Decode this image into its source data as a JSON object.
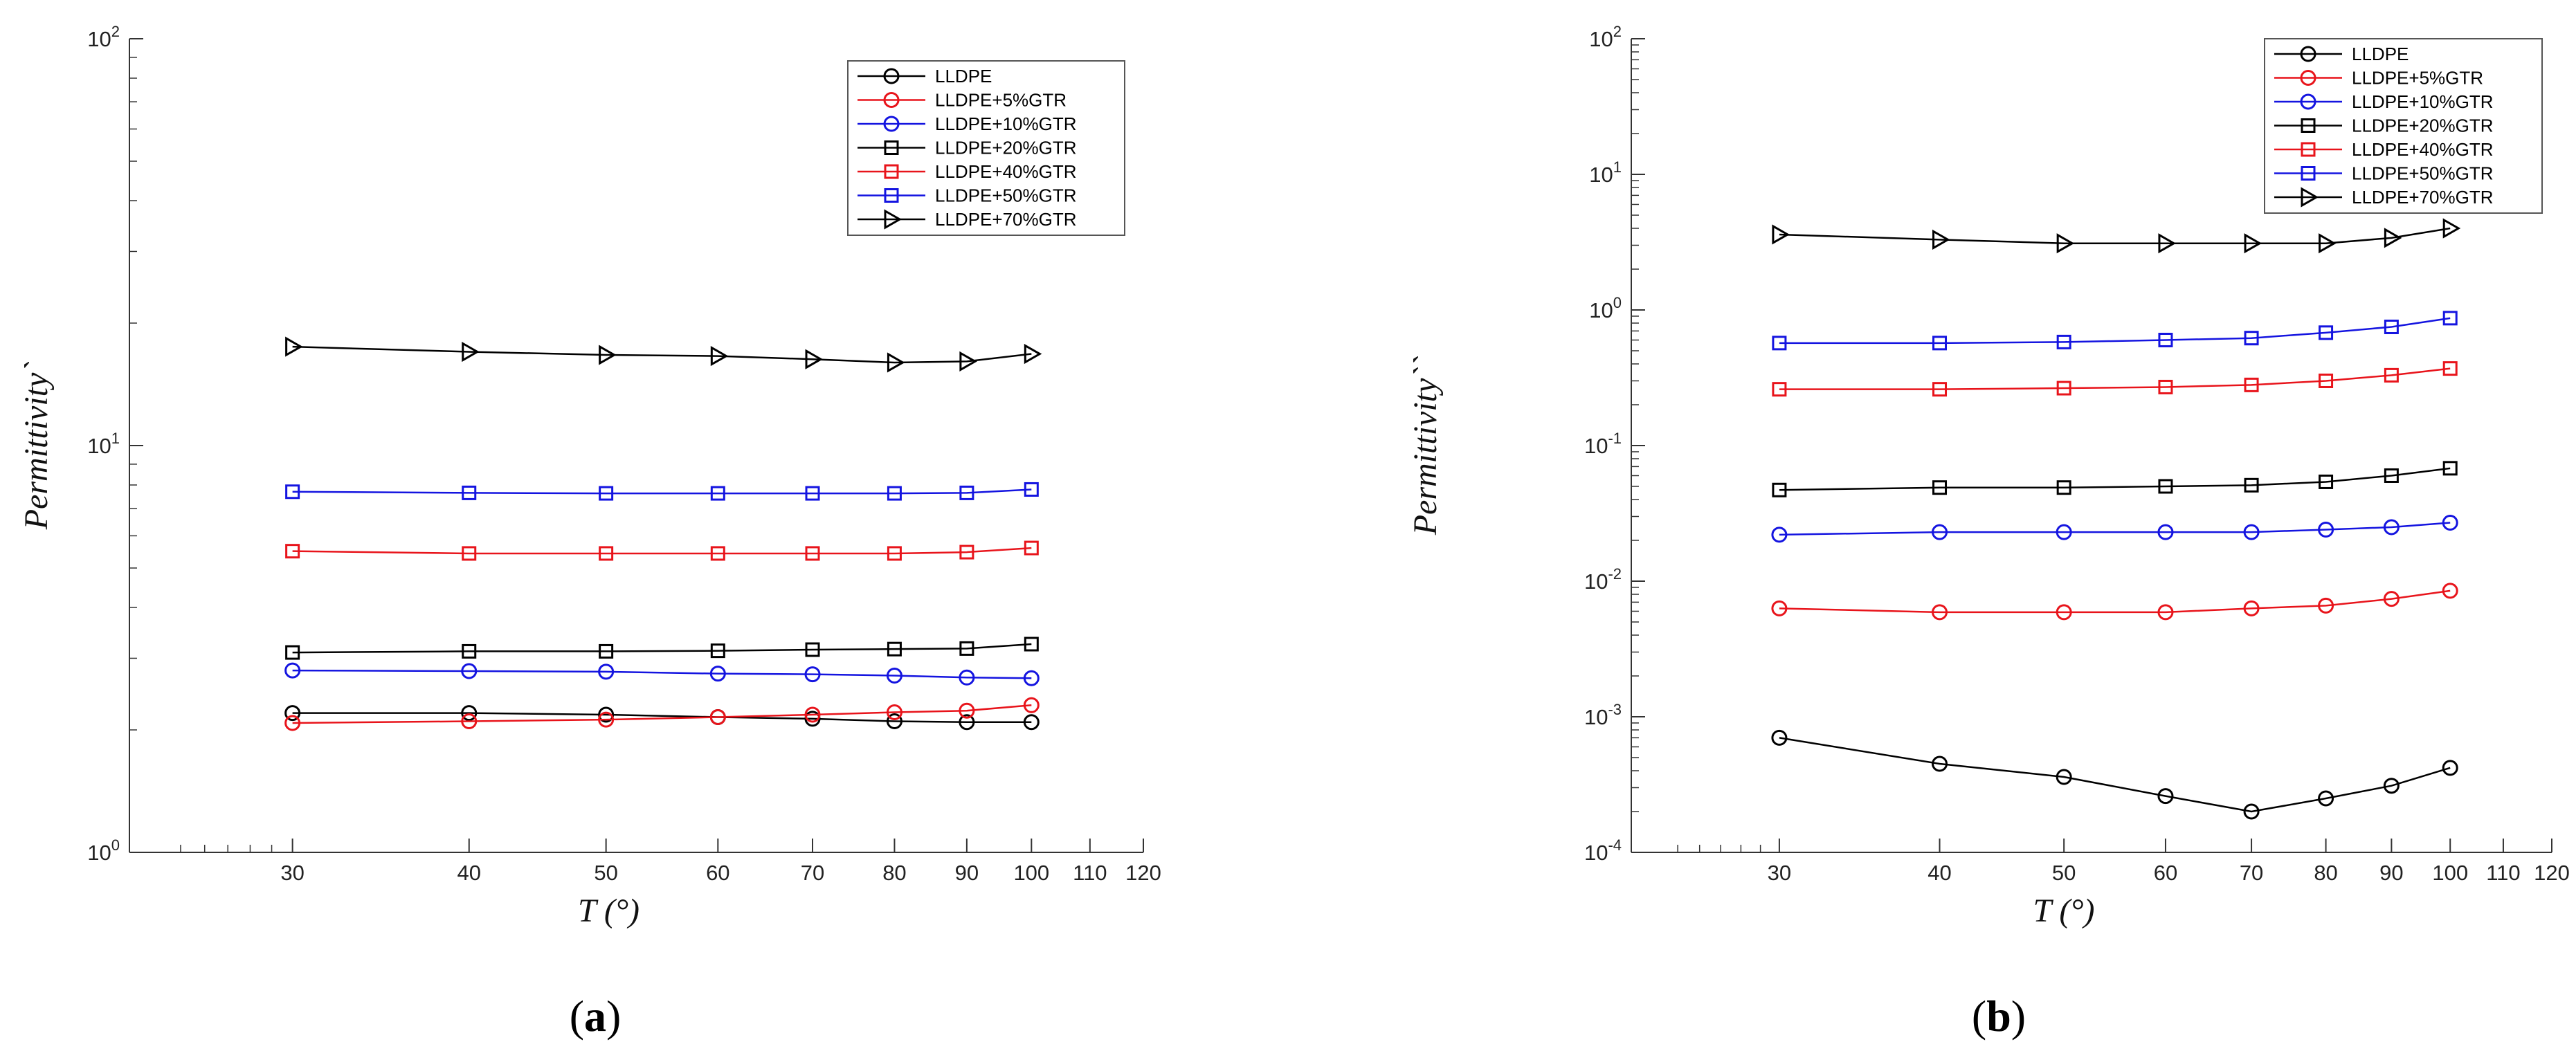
{
  "colors": {
    "black": "#000000",
    "red": "#e8141b",
    "blue": "#1414e0"
  },
  "chart_data": [
    {
      "panel_label": {
        "open": "(",
        "letter": "a",
        "close": ")"
      },
      "type": "line",
      "xscale": "log",
      "yscale": "log",
      "xlim": [
        23,
        120
      ],
      "ylim": [
        1,
        100
      ],
      "xlabel": "T (°)",
      "ylabel": "Permittivity`",
      "xticks": [
        "30",
        "40",
        "50",
        "60",
        "70",
        "80",
        "90",
        "100",
        "110",
        "120"
      ],
      "xtick_values": [
        30,
        40,
        50,
        60,
        70,
        80,
        90,
        100,
        110,
        120
      ],
      "yticks": [
        {
          "value": 1,
          "base": "10",
          "exp": "0"
        },
        {
          "value": 10,
          "base": "10",
          "exp": "1"
        },
        {
          "value": 100,
          "base": "10",
          "exp": "2"
        }
      ],
      "x": [
        30,
        40,
        50,
        60,
        70,
        80,
        90,
        100
      ],
      "legend_position": "top-right",
      "series": [
        {
          "name": "LLDPE",
          "color": "black",
          "marker": "circle",
          "values": [
            2.2,
            2.2,
            2.18,
            2.15,
            2.13,
            2.1,
            2.09,
            2.09
          ]
        },
        {
          "name": "LLDPE+5%GTR",
          "color": "red",
          "marker": "circle",
          "values": [
            2.08,
            2.1,
            2.12,
            2.15,
            2.18,
            2.21,
            2.23,
            2.3
          ]
        },
        {
          "name": "LLDPE+10%GTR",
          "color": "blue",
          "marker": "circle",
          "values": [
            2.8,
            2.79,
            2.78,
            2.75,
            2.74,
            2.72,
            2.69,
            2.68
          ]
        },
        {
          "name": "LLDPE+20%GTR",
          "color": "black",
          "marker": "square",
          "values": [
            3.1,
            3.12,
            3.12,
            3.13,
            3.15,
            3.16,
            3.17,
            3.25
          ]
        },
        {
          "name": "LLDPE+40%GTR",
          "color": "red",
          "marker": "square",
          "values": [
            5.5,
            5.43,
            5.43,
            5.43,
            5.43,
            5.43,
            5.47,
            5.6
          ]
        },
        {
          "name": "LLDPE+50%GTR",
          "color": "blue",
          "marker": "square",
          "values": [
            7.7,
            7.65,
            7.63,
            7.63,
            7.63,
            7.63,
            7.65,
            7.8
          ]
        },
        {
          "name": "LLDPE+70%GTR",
          "color": "black",
          "marker": "triangle-right",
          "values": [
            17.5,
            17.0,
            16.7,
            16.6,
            16.3,
            16.0,
            16.1,
            16.8
          ]
        }
      ]
    },
    {
      "panel_label": {
        "open": "(",
        "letter": "b",
        "close": ")"
      },
      "type": "line",
      "xscale": "log",
      "yscale": "log",
      "xlim": [
        23,
        120
      ],
      "ylim": [
        0.0001,
        100
      ],
      "xlabel": "T (°)",
      "ylabel": "Permittivity``",
      "xticks": [
        "30",
        "40",
        "50",
        "60",
        "70",
        "80",
        "90",
        "100",
        "110",
        "120"
      ],
      "xtick_values": [
        30,
        40,
        50,
        60,
        70,
        80,
        90,
        100,
        110,
        120
      ],
      "yticks": [
        {
          "value": 0.0001,
          "base": "10",
          "exp": "-4"
        },
        {
          "value": 0.001,
          "base": "10",
          "exp": "-3"
        },
        {
          "value": 0.01,
          "base": "10",
          "exp": "-2"
        },
        {
          "value": 0.1,
          "base": "10",
          "exp": "-1"
        },
        {
          "value": 1,
          "base": "10",
          "exp": "0"
        },
        {
          "value": 10,
          "base": "10",
          "exp": "1"
        },
        {
          "value": 100,
          "base": "10",
          "exp": "2"
        }
      ],
      "x": [
        30,
        40,
        50,
        60,
        70,
        80,
        90,
        100
      ],
      "legend_position": "top-right",
      "series": [
        {
          "name": "LLDPE",
          "color": "black",
          "marker": "circle",
          "values": [
            0.0007,
            0.00045,
            0.00036,
            0.00026,
            0.0002,
            0.00025,
            0.00031,
            0.00042
          ]
        },
        {
          "name": "LLDPE+5%GTR",
          "color": "red",
          "marker": "circle",
          "values": [
            0.0063,
            0.0059,
            0.0059,
            0.0059,
            0.0063,
            0.0066,
            0.0074,
            0.0085
          ]
        },
        {
          "name": "LLDPE+10%GTR",
          "color": "blue",
          "marker": "circle",
          "values": [
            0.022,
            0.023,
            0.023,
            0.023,
            0.023,
            0.024,
            0.025,
            0.027
          ]
        },
        {
          "name": "LLDPE+20%GTR",
          "color": "black",
          "marker": "square",
          "values": [
            0.047,
            0.049,
            0.049,
            0.05,
            0.051,
            0.054,
            0.06,
            0.068
          ]
        },
        {
          "name": "LLDPE+40%GTR",
          "color": "red",
          "marker": "square",
          "values": [
            0.26,
            0.26,
            0.265,
            0.27,
            0.28,
            0.3,
            0.33,
            0.37
          ]
        },
        {
          "name": "LLDPE+50%GTR",
          "color": "blue",
          "marker": "square",
          "values": [
            0.57,
            0.57,
            0.58,
            0.6,
            0.62,
            0.68,
            0.75,
            0.87
          ]
        },
        {
          "name": "LLDPE+70%GTR",
          "color": "black",
          "marker": "triangle-right",
          "values": [
            3.6,
            3.3,
            3.1,
            3.1,
            3.1,
            3.1,
            3.4,
            4.0
          ]
        }
      ]
    }
  ]
}
